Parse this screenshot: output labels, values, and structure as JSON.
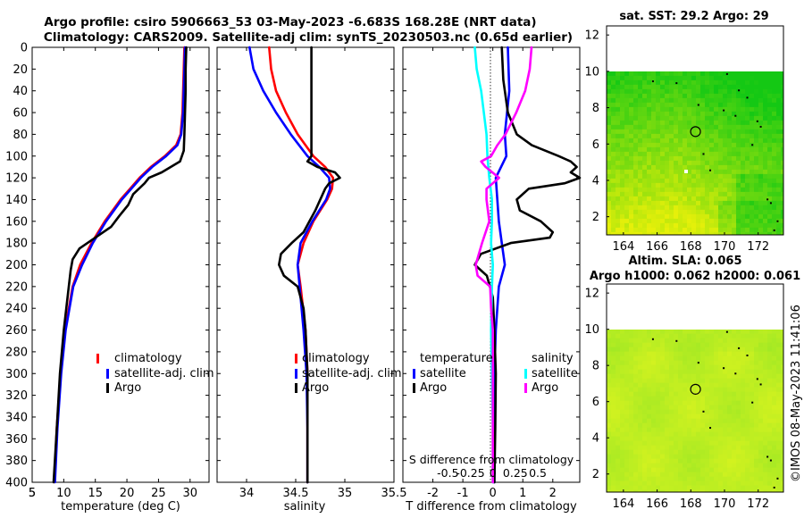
{
  "header": {
    "line1": "Argo profile: csiro 5906663_53 03-May-2023 -6.683S 168.28E (NRT data)",
    "line2": "Climatology: CARS2009. Satellite-adj clim: synTS_20230503.nc (0.65d earlier)"
  },
  "credit": "©IMOS 08-May-2023 11:41:06",
  "colors": {
    "climatology": "#ff0000",
    "satellite": "#0000ff",
    "argo": "#000000",
    "sal_satellite": "#00ffff",
    "sal_argo": "#ff00ff"
  },
  "chart_data": [
    {
      "type": "line",
      "id": "temperature",
      "xlabel": "temperature (deg C)",
      "ylabel": "",
      "xlim": [
        5,
        33
      ],
      "ylim": [
        400,
        0
      ],
      "xticks": [
        "5",
        "10",
        "15",
        "20",
        "25",
        "30"
      ],
      "yticks": [
        "0",
        "20",
        "40",
        "60",
        "80",
        "100",
        "120",
        "140",
        "160",
        "180",
        "200",
        "220",
        "240",
        "260",
        "280",
        "300",
        "320",
        "340",
        "360",
        "380",
        "400"
      ],
      "legend": [
        "climatology",
        "satellite-adj. clim",
        "Argo"
      ],
      "series": [
        {
          "name": "climatology",
          "color": "#ff0000",
          "depth": [
            0,
            20,
            40,
            60,
            80,
            90,
            100,
            110,
            120,
            130,
            140,
            160,
            180,
            200,
            220,
            260,
            300,
            350,
            400
          ],
          "values": [
            29.1,
            29.0,
            28.9,
            28.8,
            28.5,
            27.8,
            26.0,
            23.8,
            22.0,
            20.5,
            19.0,
            16.5,
            14.4,
            12.6,
            11.4,
            10.2,
            9.5,
            8.9,
            8.5
          ]
        },
        {
          "name": "satellite-adj. clim",
          "color": "#0000ff",
          "depth": [
            0,
            20,
            40,
            60,
            80,
            90,
            100,
            110,
            120,
            130,
            140,
            160,
            180,
            200,
            220,
            260,
            300,
            350,
            400
          ],
          "values": [
            29.2,
            29.1,
            29.0,
            28.9,
            28.6,
            28.0,
            26.2,
            24.0,
            22.2,
            20.7,
            19.2,
            16.7,
            14.6,
            12.9,
            11.5,
            10.3,
            9.6,
            9.0,
            8.6
          ]
        },
        {
          "name": "Argo",
          "color": "#000000",
          "depth": [
            0,
            20,
            40,
            60,
            80,
            95,
            105,
            115,
            120,
            125,
            135,
            145,
            155,
            165,
            175,
            185,
            195,
            205,
            220,
            260,
            300,
            350,
            400
          ],
          "values": [
            29.4,
            29.3,
            29.3,
            29.2,
            29.1,
            29.0,
            28.4,
            25.5,
            23.5,
            22.8,
            21.0,
            20.2,
            18.8,
            17.5,
            15.0,
            12.5,
            11.4,
            11.1,
            10.8,
            10.0,
            9.4,
            8.9,
            8.4
          ]
        }
      ]
    },
    {
      "type": "line",
      "id": "salinity",
      "xlabel": "salinity",
      "xlim": [
        33.7,
        35.5
      ],
      "ylim": [
        400,
        0
      ],
      "xticks": [
        "34",
        "34.5",
        "35",
        "35.5"
      ],
      "legend": [
        "climatology",
        "satellite-adj. clim",
        "Argo"
      ],
      "series": [
        {
          "name": "climatology",
          "color": "#ff0000",
          "depth": [
            0,
            20,
            40,
            60,
            80,
            100,
            110,
            120,
            130,
            140,
            160,
            180,
            200,
            220,
            260,
            300,
            350,
            400
          ],
          "values": [
            34.23,
            34.25,
            34.3,
            34.4,
            34.52,
            34.68,
            34.8,
            34.88,
            34.87,
            34.82,
            34.68,
            34.58,
            34.52,
            34.55,
            34.6,
            34.62,
            34.62,
            34.62
          ]
        },
        {
          "name": "satellite-adj. clim",
          "color": "#0000ff",
          "depth": [
            0,
            20,
            40,
            60,
            80,
            100,
            110,
            120,
            130,
            140,
            160,
            180,
            200,
            220,
            260,
            300,
            350,
            400
          ],
          "values": [
            34.03,
            34.07,
            34.17,
            34.3,
            34.45,
            34.62,
            34.74,
            34.84,
            34.85,
            34.81,
            34.67,
            34.55,
            34.52,
            34.54,
            34.58,
            34.61,
            34.62,
            34.62
          ]
        },
        {
          "name": "Argo",
          "color": "#000000",
          "depth": [
            0,
            20,
            40,
            60,
            80,
            100,
            105,
            110,
            115,
            120,
            125,
            130,
            140,
            150,
            160,
            170,
            180,
            190,
            200,
            210,
            220,
            240,
            260,
            300,
            350,
            400
          ],
          "values": [
            34.66,
            34.66,
            34.66,
            34.66,
            34.66,
            34.66,
            34.62,
            34.72,
            34.9,
            34.95,
            34.84,
            34.8,
            34.75,
            34.7,
            34.64,
            34.58,
            34.46,
            34.35,
            34.33,
            34.38,
            34.52,
            34.58,
            34.6,
            34.62,
            34.62,
            34.62
          ]
        }
      ]
    },
    {
      "type": "line",
      "id": "differences",
      "xlabel": "T difference from climatology",
      "xlabel_top": "S difference from climatology",
      "xlim": [
        -3,
        2.9
      ],
      "ylim": [
        400,
        0
      ],
      "xticks": [
        "-2",
        "-1",
        "0",
        "1",
        "2"
      ],
      "xticks_top": [
        "-0.5",
        "-0.25",
        "0",
        "0.25",
        "0.5"
      ],
      "legend_temperature": {
        "title": "temperature",
        "items": [
          "satellite",
          "Argo"
        ]
      },
      "legend_salinity": {
        "title": "salinity",
        "items": [
          "satellite",
          "Argo"
        ]
      },
      "series": [
        {
          "name": "temperature satellite",
          "color": "#0000ff",
          "depth": [
            0,
            40,
            80,
            100,
            120,
            140,
            160,
            180,
            200,
            220,
            260,
            300,
            350,
            400
          ],
          "values": [
            0.5,
            0.55,
            0.4,
            0.45,
            0.1,
            0.15,
            0.2,
            0.3,
            0.4,
            0.2,
            0.1,
            0.05,
            0.05,
            0.05
          ]
        },
        {
          "name": "temperature Argo",
          "color": "#000000",
          "depth": [
            0,
            30,
            60,
            80,
            90,
            100,
            105,
            110,
            115,
            120,
            125,
            130,
            140,
            150,
            160,
            170,
            175,
            180,
            190,
            200,
            210,
            230,
            260,
            300,
            350,
            400
          ],
          "values": [
            0.3,
            0.35,
            0.5,
            0.8,
            1.3,
            2.2,
            2.6,
            2.8,
            2.6,
            2.9,
            2.4,
            1.2,
            0.8,
            0.9,
            1.6,
            2.0,
            1.9,
            0.6,
            -0.4,
            -0.6,
            -0.2,
            0.0,
            0.05,
            0.1,
            0.08,
            0.05
          ]
        },
        {
          "name": "salinity satellite",
          "color": "#00ffff",
          "depth": [
            0,
            20,
            40,
            60,
            80,
            100,
            120,
            140,
            160,
            180,
            200,
            220,
            260,
            300,
            350,
            400
          ],
          "values": [
            -0.2,
            -0.18,
            -0.13,
            -0.1,
            -0.07,
            -0.06,
            -0.04,
            -0.01,
            -0.01,
            -0.02,
            0.0,
            -0.01,
            -0.02,
            -0.01,
            0.0,
            0.0
          ]
        },
        {
          "name": "salinity Argo",
          "color": "#ff00ff",
          "depth": [
            0,
            20,
            40,
            60,
            80,
            90,
            100,
            105,
            110,
            120,
            130,
            140,
            160,
            180,
            200,
            210,
            220,
            240,
            260,
            300,
            350,
            400
          ],
          "values": [
            0.43,
            0.41,
            0.36,
            0.26,
            0.14,
            0.05,
            -0.02,
            -0.13,
            -0.08,
            0.07,
            -0.07,
            -0.07,
            -0.04,
            -0.12,
            -0.19,
            -0.17,
            -0.03,
            -0.02,
            0.0,
            0.0,
            0.0,
            0.0
          ]
        }
      ]
    },
    {
      "type": "heatmap",
      "id": "sst_map",
      "title": "sat. SST: 29.2 Argo: 29",
      "xlim": [
        163,
        173.5
      ],
      "ylim": [
        1,
        12.5
      ],
      "xticks": [
        "164",
        "166",
        "168",
        "170",
        "172"
      ],
      "yticks": [
        "2",
        "4",
        "6",
        "8",
        "10",
        "12"
      ],
      "data_top_lat": 10,
      "argo_position": [
        168.28,
        6.683
      ]
    },
    {
      "type": "heatmap",
      "id": "sla_map",
      "title": "Altim. SLA: 0.065",
      "subtitle": "Argo h1000: 0.062 h2000: 0.061",
      "xlim": [
        163,
        173.5
      ],
      "ylim": [
        1,
        12.5
      ],
      "xticks": [
        "164",
        "166",
        "168",
        "170",
        "172"
      ],
      "yticks": [
        "2",
        "4",
        "6",
        "8",
        "10",
        "12"
      ],
      "data_top_lat": 10,
      "argo_position": [
        168.28,
        6.683
      ]
    }
  ]
}
